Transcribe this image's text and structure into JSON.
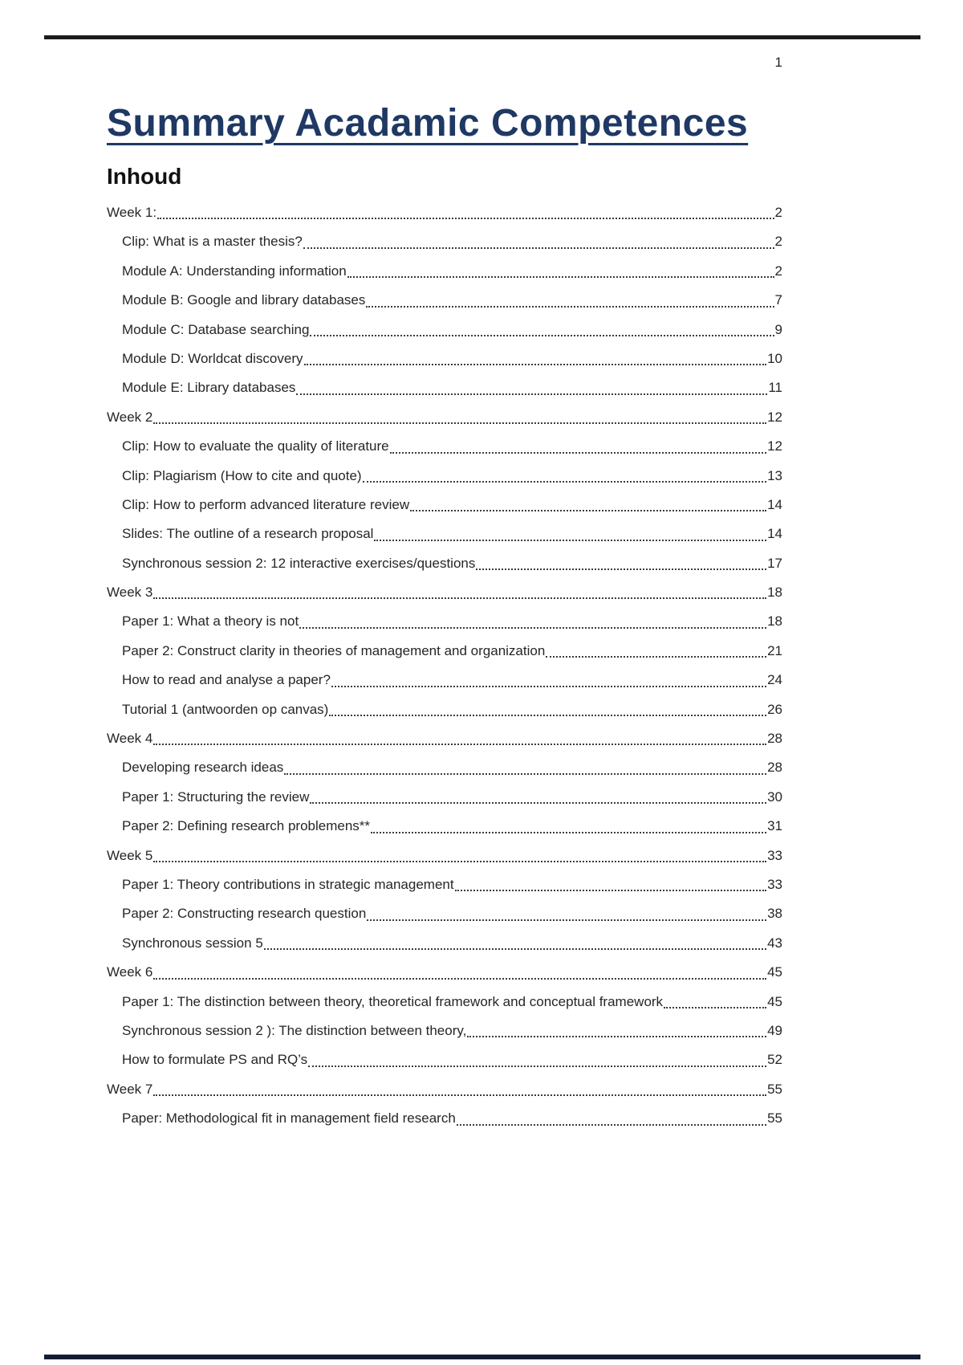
{
  "page": {
    "number": "1",
    "title": "Summary Acadamic Competences",
    "toc_heading": "Inhoud"
  },
  "toc": {
    "entries": [
      {
        "label": "Week 1:",
        "page": "2",
        "level": 1
      },
      {
        "label": "Clip: What is a master thesis?",
        "page": "2",
        "level": 2
      },
      {
        "label": "Module A: Understanding information",
        "page": "2",
        "level": 2
      },
      {
        "label": "Module B: Google and library databases",
        "page": "7",
        "level": 2
      },
      {
        "label": "Module C: Database searching",
        "page": "9",
        "level": 2
      },
      {
        "label": "Module D: Worldcat discovery",
        "page": "10",
        "level": 2
      },
      {
        "label": "Module E: Library databases",
        "page": "11",
        "level": 2
      },
      {
        "label": "Week 2",
        "page": "12",
        "level": 1
      },
      {
        "label": "Clip: How to evaluate the quality of literature",
        "page": "12",
        "level": 2
      },
      {
        "label": "Clip: Plagiarism (How to cite and quote)",
        "page": "13",
        "level": 2
      },
      {
        "label": "Clip: How to perform advanced literature review",
        "page": "14",
        "level": 2
      },
      {
        "label": "Slides: The outline of a research proposal",
        "page": "14",
        "level": 2
      },
      {
        "label": "Synchronous session 2: 12 interactive exercises/questions",
        "page": "17",
        "level": 2
      },
      {
        "label": "Week 3",
        "page": "18",
        "level": 1
      },
      {
        "label": "Paper 1: What a theory is not",
        "page": "18",
        "level": 2
      },
      {
        "label": "Paper 2: Construct clarity in theories of management and organization",
        "page": "21",
        "level": 2
      },
      {
        "label": "How to read and analyse a paper?",
        "page": "24",
        "level": 2
      },
      {
        "label": "Tutorial 1 (antwoorden op canvas)",
        "page": "26",
        "level": 2
      },
      {
        "label": "Week 4",
        "page": "28",
        "level": 1
      },
      {
        "label": "Developing research ideas",
        "page": "28",
        "level": 2
      },
      {
        "label": "Paper 1: Structuring the review",
        "page": "30",
        "level": 2
      },
      {
        "label": "Paper 2: Defining research problemens**",
        "page": "31",
        "level": 2
      },
      {
        "label": "Week 5",
        "page": "33",
        "level": 1
      },
      {
        "label": "Paper 1: Theory contributions in strategic management",
        "page": "33",
        "level": 2
      },
      {
        "label": "Paper 2: Constructing research question",
        "page": "38",
        "level": 2
      },
      {
        "label": "Synchronous session 5",
        "page": "43",
        "level": 2
      },
      {
        "label": "Week 6",
        "page": "45",
        "level": 1
      },
      {
        "label": "Paper 1: The distinction between theory, theoretical framework and conceptual framework",
        "page": "45",
        "level": 2
      },
      {
        "label": "Synchronous session 2 ): The distinction between theory, ",
        "page": "49",
        "level": 2
      },
      {
        "label": "How to formulate PS and RQ’s",
        "page": "52",
        "level": 2
      },
      {
        "label": "Week 7",
        "page": "55",
        "level": 1
      },
      {
        "label": "Paper: Methodological fit in management field research",
        "page": "55",
        "level": 2
      }
    ]
  },
  "colors": {
    "title_navy": "#1f3864",
    "body_text": "#262626",
    "top_rule": "#1c1c1c",
    "bottom_rule": "#141d33"
  }
}
